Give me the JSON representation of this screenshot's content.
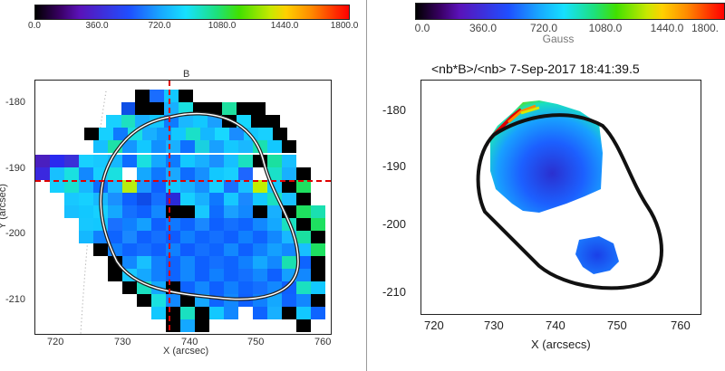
{
  "left_panel": {
    "colorbar": {
      "ticks": [
        "0.0",
        "360.0",
        "720.0",
        "1080.0",
        "1440.0",
        "1800.0"
      ]
    },
    "top_label": "B",
    "x_axis": {
      "label": "X (arcsec)",
      "ticks": [
        "720",
        "730",
        "740",
        "750",
        "760"
      ]
    },
    "y_axis": {
      "label": "Y (arcsec)",
      "ticks": [
        "-180",
        "-190",
        "-200",
        "-210"
      ]
    }
  },
  "right_panel": {
    "colorbar": {
      "ticks": [
        "0.0",
        "360.0",
        "720.0",
        "1080.0",
        "1440.0",
        "1800."
      ],
      "unit": "Gauss"
    },
    "title": "<nb*B>/<nb>  7-Sep-2017  18:41:39.5",
    "x_axis": {
      "label": "X (arcsecs)",
      "ticks": [
        "720",
        "730",
        "740",
        "750",
        "760"
      ]
    },
    "y_axis": {
      "ticks": [
        "-180",
        "-190",
        "-200",
        "-210"
      ]
    }
  }
}
